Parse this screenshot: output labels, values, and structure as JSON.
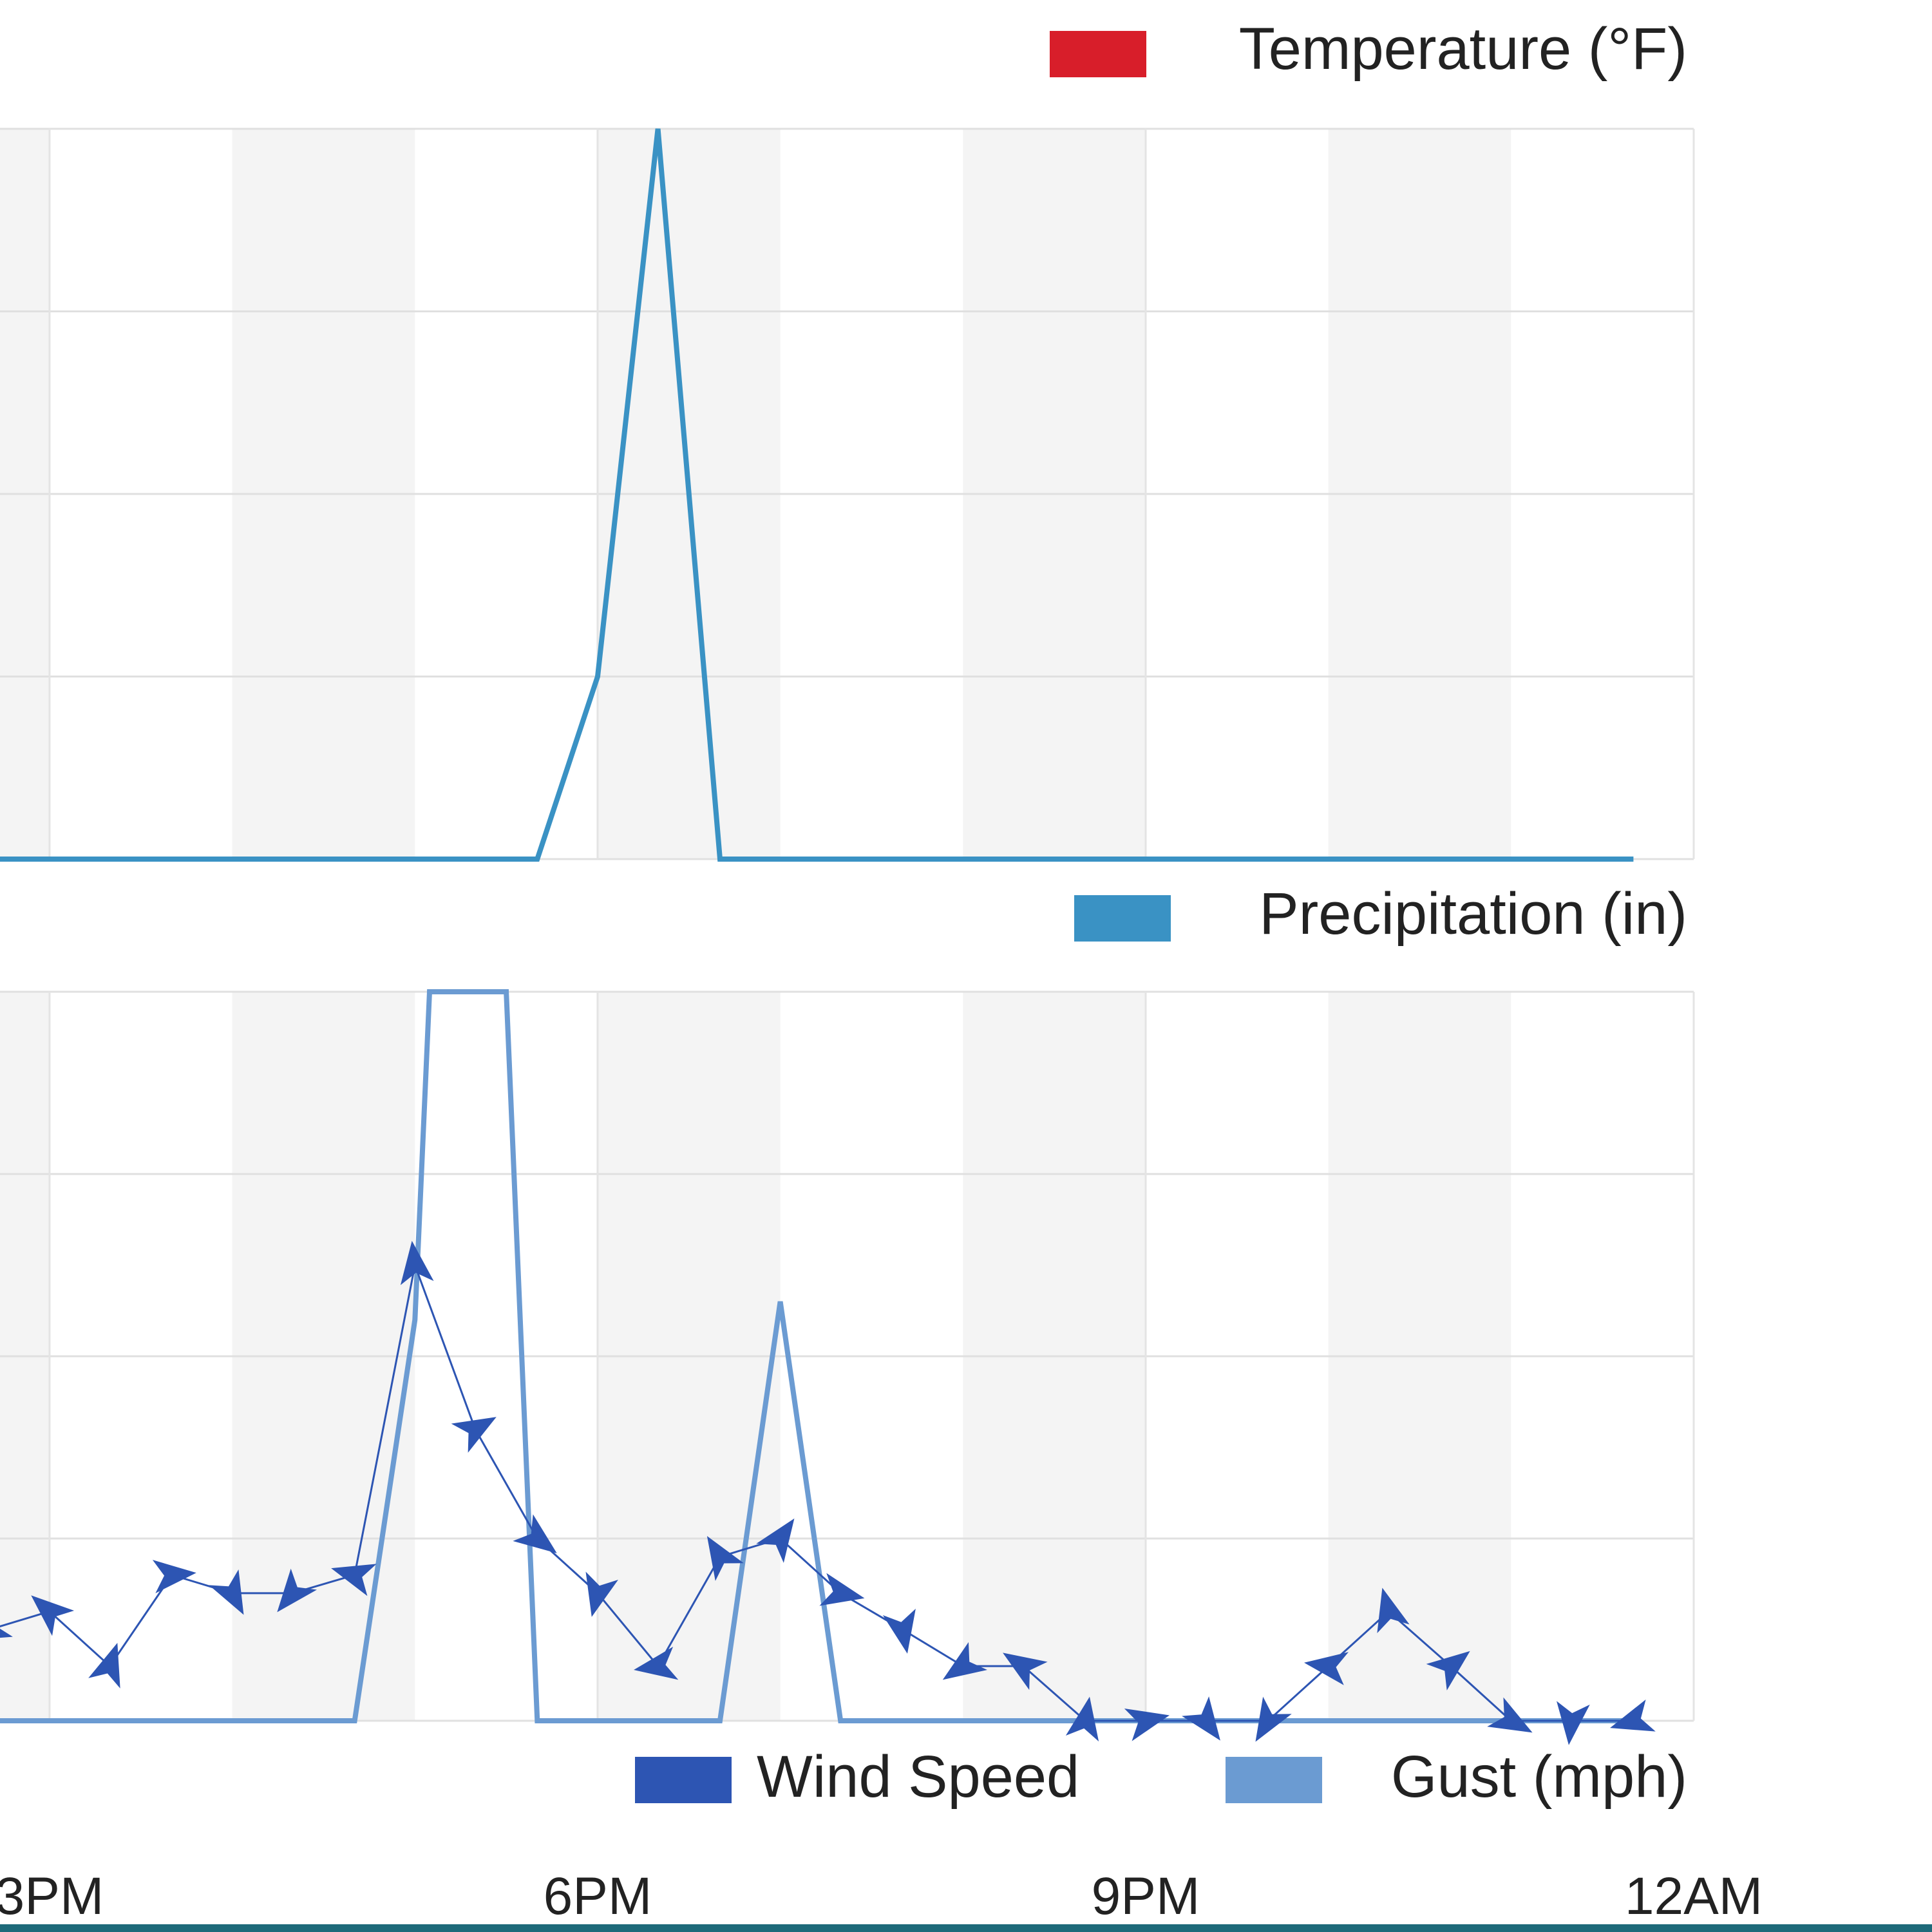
{
  "legends": {
    "temperature": {
      "label": "Temperature (°F)",
      "color": "#d81e2a"
    },
    "precipitation": {
      "label": "Precipitation (in)",
      "color": "#3a92c4"
    },
    "wind_speed": {
      "label": "Wind Speed",
      "color": "#2d55b3"
    },
    "gust": {
      "label": "Gust (mph)",
      "color": "#6b9bd2"
    }
  },
  "x_axis": {
    "ticks": [
      {
        "hour": 15,
        "label": "3PM"
      },
      {
        "hour": 18,
        "label": "6PM"
      },
      {
        "hour": 21,
        "label": "9PM"
      },
      {
        "hour": 24,
        "label": "12AM"
      }
    ]
  },
  "chart_data": [
    {
      "type": "line",
      "panel": "precipitation",
      "x_unit": "hour of day",
      "xlim": [
        14.2,
        24.0
      ],
      "ylim": [
        0,
        4
      ],
      "grid": true,
      "legend_position": "top-right",
      "series": [
        {
          "name": "Precipitation (in)",
          "color": "#3a92c4",
          "x": [
            14.2,
            17.67,
            18.0,
            18.33,
            18.67,
            23.67
          ],
          "y": [
            0,
            0,
            1.0,
            4.0,
            0,
            0
          ]
        }
      ]
    },
    {
      "type": "line",
      "panel": "wind",
      "x_unit": "hour of day",
      "xlim": [
        14.2,
        24.0
      ],
      "ylim": [
        0,
        4
      ],
      "grid": true,
      "legend_position": "bottom-right",
      "series": [
        {
          "name": "Gust (mph)",
          "color": "#6b9bd2",
          "x": [
            14.2,
            16.67,
            17.0,
            17.08,
            17.5,
            17.67,
            18.67,
            19.0,
            19.33,
            23.67
          ],
          "y": [
            0,
            0,
            2.2,
            4.0,
            4.0,
            0,
            0,
            2.3,
            0,
            0
          ]
        },
        {
          "name": "Wind Speed",
          "color": "#2d55b3",
          "x": [
            14.2,
            14.33,
            14.67,
            15.0,
            15.33,
            15.67,
            16.0,
            16.33,
            16.67,
            17.0,
            17.33,
            17.67,
            18.0,
            18.33,
            18.67,
            19.0,
            19.33,
            19.67,
            20.0,
            20.33,
            20.67,
            21.0,
            21.33,
            21.67,
            22.0,
            22.33,
            22.67,
            23.0,
            23.33,
            23.67
          ],
          "y": [
            0.5,
            0.5,
            0.5,
            0.6,
            0.3,
            0.8,
            0.7,
            0.7,
            0.8,
            2.5,
            1.6,
            1.0,
            0.7,
            0.3,
            0.9,
            1.0,
            0.7,
            0.5,
            0.3,
            0.3,
            0,
            0,
            0,
            0,
            0.3,
            0.6,
            0.3,
            0,
            0,
            0
          ],
          "direction_arrows": true
        }
      ]
    }
  ]
}
